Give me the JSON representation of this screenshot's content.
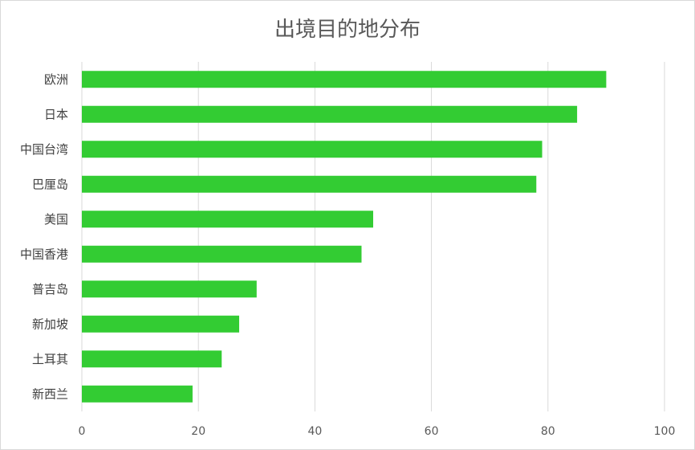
{
  "chart_data": {
    "type": "bar",
    "orientation": "horizontal",
    "title": "出境目的地分布",
    "categories": [
      "欧洲",
      "日本",
      "中国台湾",
      "巴厘岛",
      "美国",
      "中国香港",
      "普吉岛",
      "新加坡",
      "土耳其",
      "新西兰"
    ],
    "values": [
      90,
      85,
      79,
      78,
      50,
      48,
      30,
      27,
      24,
      19
    ],
    "xlim": [
      0,
      100
    ],
    "xticks": [
      0,
      20,
      40,
      60,
      80,
      100
    ],
    "grid": "vertical",
    "legend": "none",
    "colors": {
      "bar": "#33cc33",
      "grid": "#d9d9d9",
      "axis_text": "#595959"
    }
  }
}
